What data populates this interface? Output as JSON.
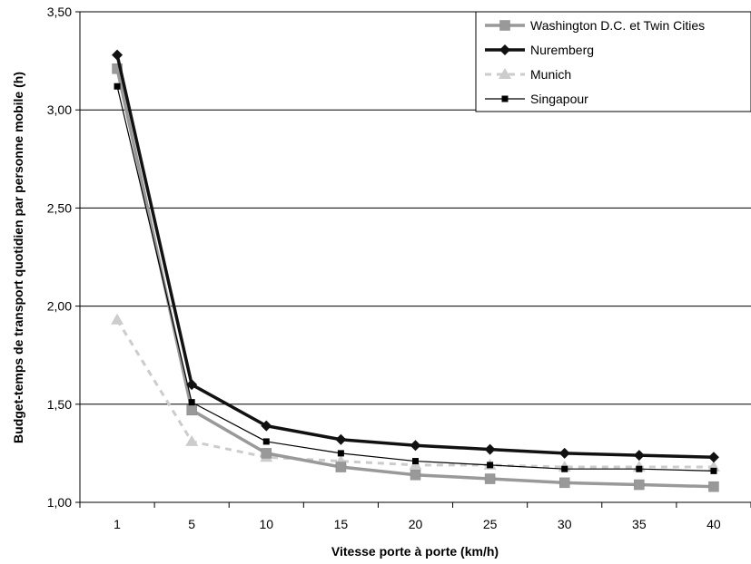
{
  "chart_data": {
    "type": "line",
    "title": "",
    "xlabel": "Vitesse porte à porte (km/h)",
    "ylabel": "Budget-temps de transport quotidien par personne mobile (h)",
    "categories": [
      "1",
      "5",
      "10",
      "15",
      "20",
      "25",
      "30",
      "35",
      "40"
    ],
    "y_ticks": [
      "1,00",
      "1,50",
      "2,00",
      "2,50",
      "3,00",
      "3,50"
    ],
    "ylim": [
      1.0,
      3.5
    ],
    "grid": "horizontal",
    "legend_position": "top-right",
    "series": [
      {
        "name": "Washington D.C. et Twin Cities",
        "values": [
          3.21,
          1.47,
          1.25,
          1.18,
          1.14,
          1.12,
          1.1,
          1.09,
          1.08
        ],
        "color": "#999999",
        "marker": "square",
        "line": "solid-thick"
      },
      {
        "name": "Nuremberg",
        "values": [
          3.28,
          1.6,
          1.39,
          1.32,
          1.29,
          1.27,
          1.25,
          1.24,
          1.23
        ],
        "color": "#111111",
        "marker": "diamond",
        "line": "solid-thick"
      },
      {
        "name": "Munich",
        "values": [
          1.93,
          1.31,
          1.23,
          1.21,
          1.19,
          1.19,
          1.18,
          1.18,
          1.18
        ],
        "color": "#cccccc",
        "marker": "triangle",
        "line": "dashed"
      },
      {
        "name": "Singapour",
        "values": [
          3.12,
          1.51,
          1.31,
          1.25,
          1.21,
          1.19,
          1.17,
          1.17,
          1.16
        ],
        "color": "#000000",
        "marker": "small-square",
        "line": "solid-thin"
      }
    ]
  }
}
